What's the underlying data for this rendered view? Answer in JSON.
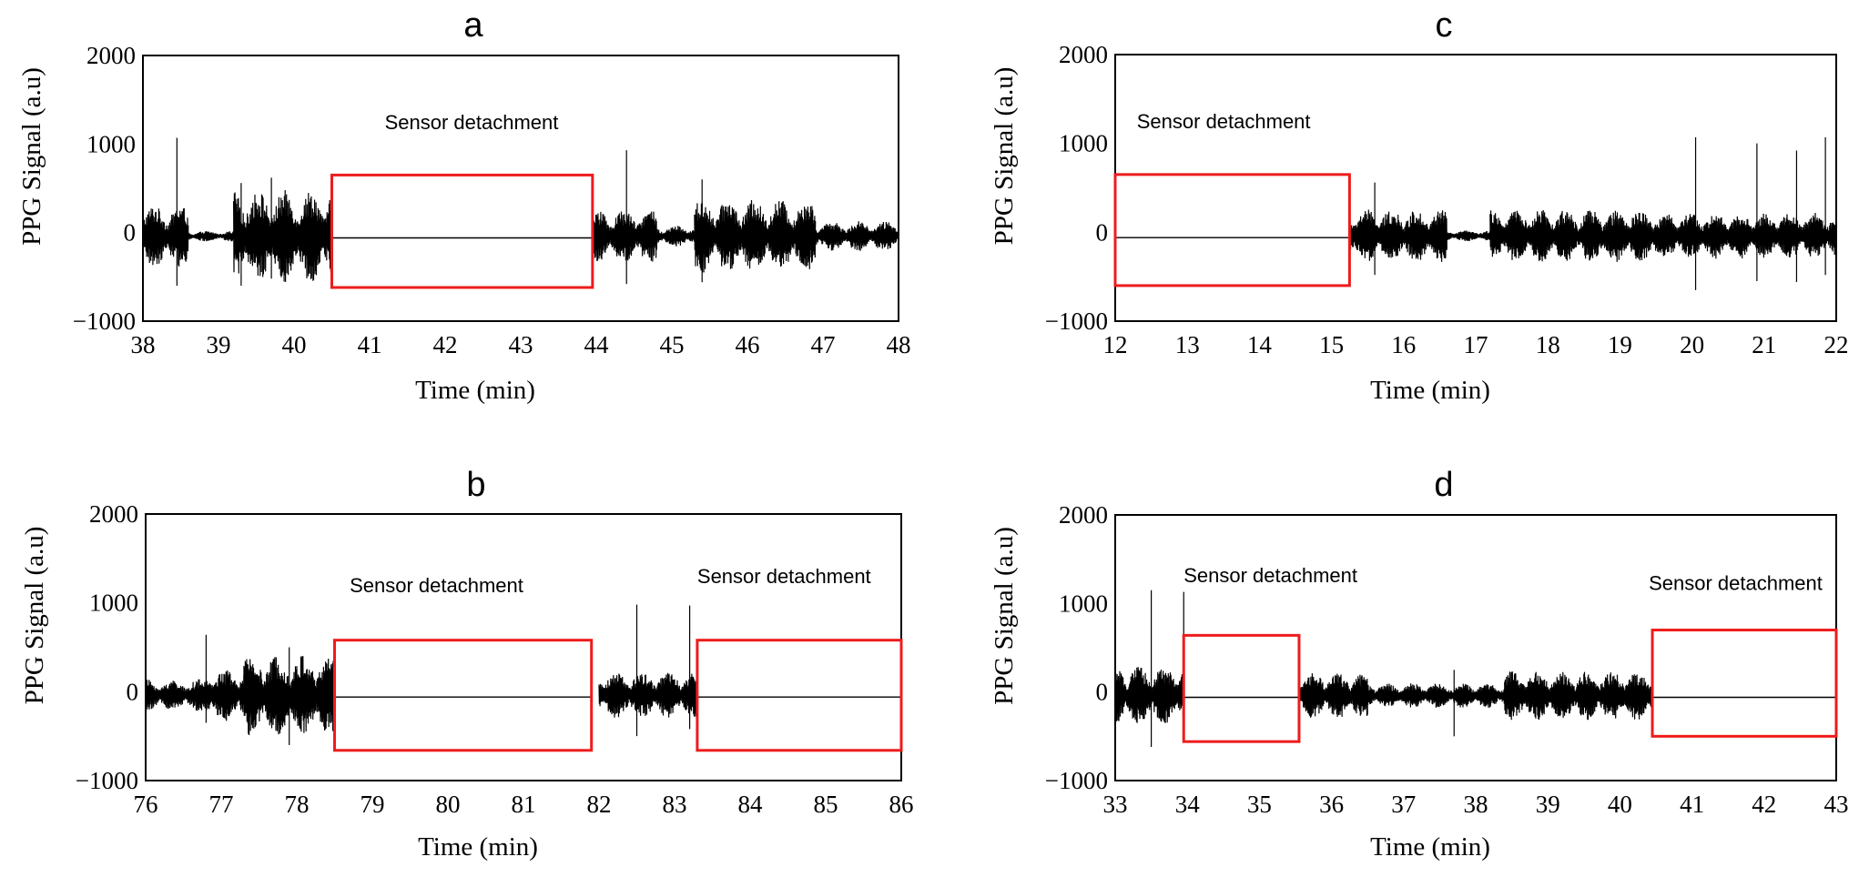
{
  "chart_data": [
    {
      "type": "line",
      "panel": "a",
      "ylabel": "PPG Signal (a.u)",
      "xlabel": "Time (min)",
      "xlim": [
        38,
        48
      ],
      "ylim": [
        -1000,
        2000
      ],
      "xticks": [
        "38",
        "39",
        "40",
        "41",
        "42",
        "43",
        "44",
        "45",
        "46",
        "47",
        "48"
      ],
      "yticks": [
        "−1000",
        "0",
        "1000",
        "2000"
      ],
      "annotations": [
        {
          "text": "Sensor detachment",
          "x_start": 40.5,
          "x_end": 43.95,
          "y_low": -620,
          "y_high": 650,
          "label_x": 41.2,
          "label_y": 1170
        }
      ],
      "active_segments": [
        {
          "start": 38.0,
          "end": 38.6,
          "amp": 350,
          "spikes": [
            [
              38.45,
              1070,
              -600
            ]
          ]
        },
        {
          "start": 38.6,
          "end": 39.2,
          "amp": 60,
          "spikes": []
        },
        {
          "start": 39.2,
          "end": 40.5,
          "amp": 520,
          "spikes": [
            [
              39.3,
              560,
              -600
            ],
            [
              39.7,
              620,
              -520
            ]
          ]
        },
        {
          "start": 43.95,
          "end": 44.8,
          "amp": 300,
          "spikes": [
            [
              44.4,
              930,
              -580
            ]
          ]
        },
        {
          "start": 44.8,
          "end": 45.3,
          "amp": 120,
          "spikes": []
        },
        {
          "start": 45.3,
          "end": 46.9,
          "amp": 420,
          "spikes": [
            [
              45.4,
              600,
              -560
            ]
          ]
        },
        {
          "start": 46.9,
          "end": 48.0,
          "amp": 170,
          "spikes": [
            [
              48.0,
              350,
              -300
            ]
          ]
        }
      ],
      "series": [
        {
          "name": "PPG Signal",
          "description": "raw PPG trace"
        }
      ]
    },
    {
      "type": "line",
      "panel": "b",
      "ylabel": "PPG Signal (a.u)",
      "xlabel": "Time (min)",
      "xlim": [
        76,
        86
      ],
      "ylim": [
        -1000,
        2000
      ],
      "xticks": [
        "76",
        "77",
        "78",
        "79",
        "80",
        "81",
        "82",
        "83",
        "84",
        "85",
        "86"
      ],
      "yticks": [
        "−1000",
        "0",
        "1000",
        "2000"
      ],
      "annotations": [
        {
          "text": "Sensor detachment",
          "x_start": 78.5,
          "x_end": 81.9,
          "y_low": -660,
          "y_high": 580,
          "label_x": 78.7,
          "label_y": 1120
        },
        {
          "text": "Sensor detachment",
          "x_start": 83.3,
          "x_end": 86.0,
          "y_low": -660,
          "y_high": 580,
          "label_x": 83.3,
          "label_y": 1220
        }
      ],
      "active_segments": [
        {
          "start": 76.0,
          "end": 76.8,
          "amp": 180,
          "spikes": [
            [
              76.8,
              640,
              -350
            ]
          ]
        },
        {
          "start": 76.8,
          "end": 77.3,
          "amp": 300,
          "spikes": []
        },
        {
          "start": 77.3,
          "end": 78.5,
          "amp": 460,
          "spikes": [
            [
              77.9,
              500,
              -600
            ]
          ]
        },
        {
          "start": 82.0,
          "end": 83.3,
          "amp": 260,
          "spikes": [
            [
              82.5,
              980,
              -500
            ],
            [
              83.2,
              970,
              -420
            ]
          ]
        }
      ],
      "series": [
        {
          "name": "PPG Signal",
          "description": "raw PPG trace"
        }
      ]
    },
    {
      "type": "line",
      "panel": "c",
      "ylabel": "PPG Signal (a.u)",
      "xlabel": "Time (min)",
      "xlim": [
        12,
        22
      ],
      "ylim": [
        -1000,
        2000
      ],
      "xticks": [
        "12",
        "13",
        "14",
        "15",
        "16",
        "17",
        "18",
        "19",
        "20",
        "21",
        "22"
      ],
      "yticks": [
        "−1000",
        "0",
        "1000",
        "2000"
      ],
      "annotations": [
        {
          "text": "Sensor detachment",
          "x_start": 12.0,
          "x_end": 15.25,
          "y_low": -600,
          "y_high": 650,
          "label_x": 12.3,
          "label_y": 1170
        }
      ],
      "active_segments": [
        {
          "start": 15.25,
          "end": 16.6,
          "amp": 300,
          "spikes": [
            [
              15.6,
              560,
              -480
            ]
          ]
        },
        {
          "start": 16.6,
          "end": 17.2,
          "amp": 60,
          "spikes": []
        },
        {
          "start": 17.2,
          "end": 19.5,
          "amp": 300,
          "spikes": []
        },
        {
          "start": 19.5,
          "end": 22.0,
          "amp": 260,
          "spikes": [
            [
              20.05,
              1070,
              -650
            ],
            [
              20.9,
              1000,
              -550
            ],
            [
              21.45,
              920,
              -560
            ],
            [
              21.85,
              1070,
              -480
            ]
          ]
        }
      ],
      "series": [
        {
          "name": "PPG Signal",
          "description": "raw PPG trace"
        }
      ]
    },
    {
      "type": "line",
      "panel": "d",
      "ylabel": "PPG Signal (a.u)",
      "xlabel": "Time (min)",
      "xlim": [
        33,
        43
      ],
      "ylim": [
        -1000,
        2000
      ],
      "xticks": [
        "33",
        "34",
        "35",
        "36",
        "37",
        "38",
        "39",
        "40",
        "41",
        "42",
        "43"
      ],
      "yticks": [
        "−1000",
        "0",
        "1000",
        "2000"
      ],
      "annotations": [
        {
          "text": "Sensor detachment",
          "x_start": 33.95,
          "x_end": 35.55,
          "y_low": -560,
          "y_high": 640,
          "label_x": 33.95,
          "label_y": 1240
        },
        {
          "text": "Sensor detachment",
          "x_start": 40.45,
          "x_end": 43.0,
          "y_low": -500,
          "y_high": 700,
          "label_x": 40.4,
          "label_y": 1150
        }
      ],
      "active_segments": [
        {
          "start": 33.0,
          "end": 33.95,
          "amp": 330,
          "spikes": [
            [
              33.5,
              1150,
              -620
            ],
            [
              33.95,
              1130,
              -400
            ]
          ]
        },
        {
          "start": 35.55,
          "end": 36.5,
          "amp": 260,
          "spikes": []
        },
        {
          "start": 36.5,
          "end": 38.4,
          "amp": 140,
          "spikes": [
            [
              37.7,
              250,
              -500
            ]
          ]
        },
        {
          "start": 38.4,
          "end": 40.45,
          "amp": 280,
          "spikes": []
        }
      ],
      "series": [
        {
          "name": "PPG Signal",
          "description": "raw PPG trace"
        }
      ]
    }
  ],
  "colors": {
    "trace": "#000000",
    "detach_box": "#ee1c1c",
    "frame": "#000000"
  }
}
